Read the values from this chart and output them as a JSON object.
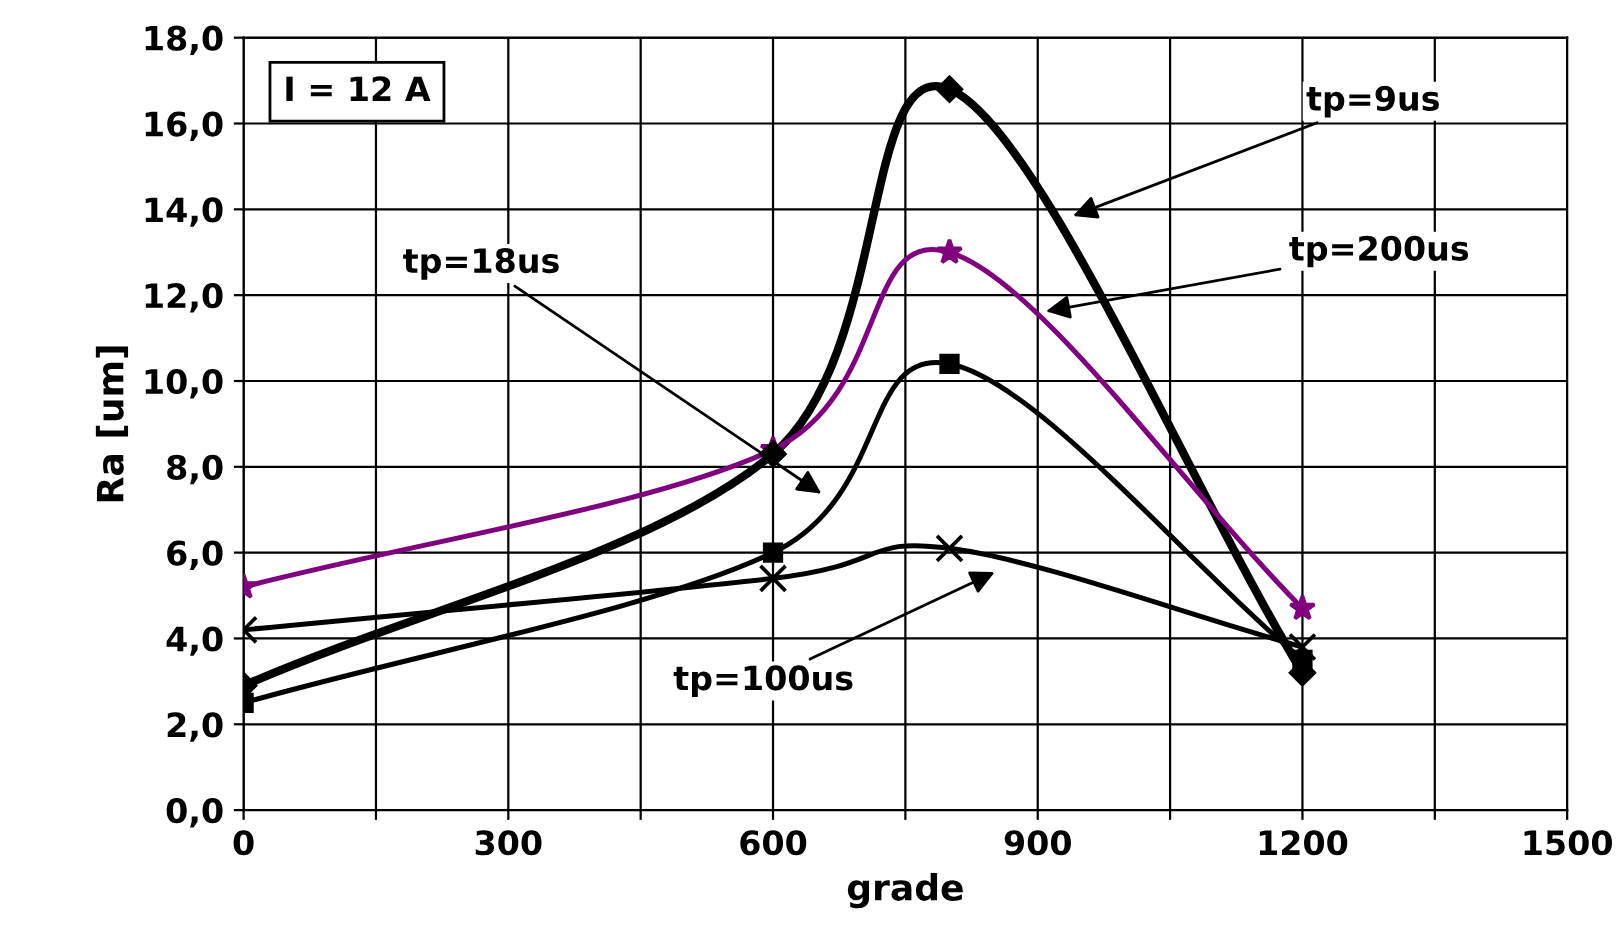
{
  "chart_data": {
    "type": "line",
    "xlabel": "grade",
    "ylabel": "Ra [um]",
    "x": [
      0,
      600,
      800,
      1200
    ],
    "series": [
      {
        "color": "#000000",
        "marker": "diamond",
        "values": [
          2.9,
          8.3,
          16.8,
          3.2
        ]
      },
      {
        "color": "#800080",
        "marker": "star",
        "values": [
          5.2,
          8.4,
          13.0,
          4.7
        ]
      },
      {
        "color": "#000000",
        "marker": "square",
        "values": [
          2.5,
          6.0,
          10.4,
          3.5
        ]
      },
      {
        "color": "#000000",
        "marker": "cross",
        "values": [
          4.2,
          5.4,
          6.1,
          3.8
        ]
      }
    ],
    "xlim": [
      0,
      1500
    ],
    "xticks": [
      0,
      {
        "value": 150,
        "label": null
      },
      300,
      {
        "value": 450,
        "label": null
      },
      600,
      {
        "value": 750,
        "label": null
      },
      900,
      {
        "value": 1050,
        "label": null
      },
      1200,
      {
        "value": 1350,
        "label": null
      },
      1500
    ],
    "ylim": [
      0,
      18
    ],
    "yticks": [
      {
        "value": 0,
        "label": "0,0"
      },
      {
        "value": 2,
        "label": "2,0"
      },
      {
        "value": 4,
        "label": "4,0"
      },
      {
        "value": 6,
        "label": "6,0"
      },
      {
        "value": 8,
        "label": "8,0"
      },
      {
        "value": 10,
        "label": "10,0"
      },
      {
        "value": 12,
        "label": "12,0"
      },
      {
        "value": 14,
        "label": "14,0"
      },
      {
        "value": 16,
        "label": "16,0"
      },
      {
        "value": 18,
        "label": "18,0"
      }
    ],
    "grid": true,
    "legend": false,
    "line_style": "solid",
    "annotations": [
      "I = 12 A",
      {
        "text": "tp=9us",
        "x": 934,
        "y": 13.8
      },
      {
        "text": "tp=200us",
        "x": 903,
        "y": 11.6
      },
      {
        "text": "tp=18us",
        "x": 660,
        "y": 7.3
      },
      {
        "text": "tp=100us",
        "x": 857,
        "y": 5.6
      }
    ]
  }
}
